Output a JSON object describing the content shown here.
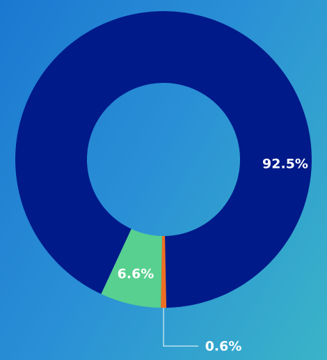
{
  "chart_data": {
    "type": "pie",
    "values": [
      0.6,
      6.6,
      92.5
    ],
    "value_labels": [
      "0.6%",
      "6.6%",
      "92.5%"
    ],
    "colors": [
      "#ef6f22",
      "#58d08f",
      "#001a8a"
    ]
  }
}
